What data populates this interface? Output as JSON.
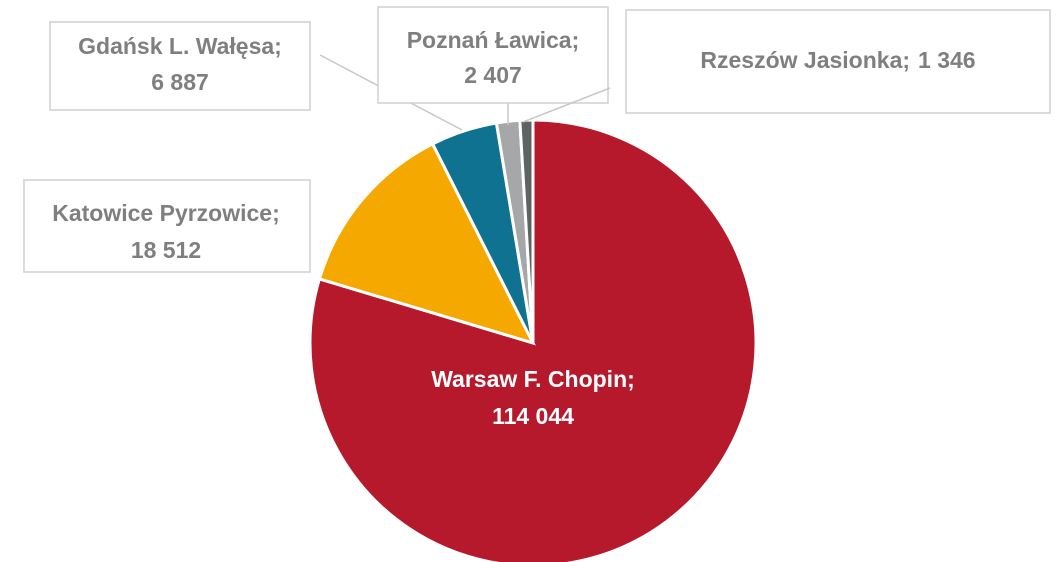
{
  "chart_data": {
    "type": "pie",
    "categories": [
      "Warsaw F. Chopin",
      "Katowice Pyrzowice",
      "Gdańsk L. Wałęsa",
      "Poznań Ławica",
      "Rzeszów Jasionka"
    ],
    "values": [
      114044,
      18512,
      6887,
      2407,
      1346
    ],
    "value_labels": [
      "114 044",
      "18 512",
      "6 887",
      "2 407",
      "1 346"
    ],
    "label_separator": ";",
    "colors": [
      "#b5192b",
      "#f5a800",
      "#0e7290",
      "#a5a7a9",
      "#5d6461"
    ]
  }
}
